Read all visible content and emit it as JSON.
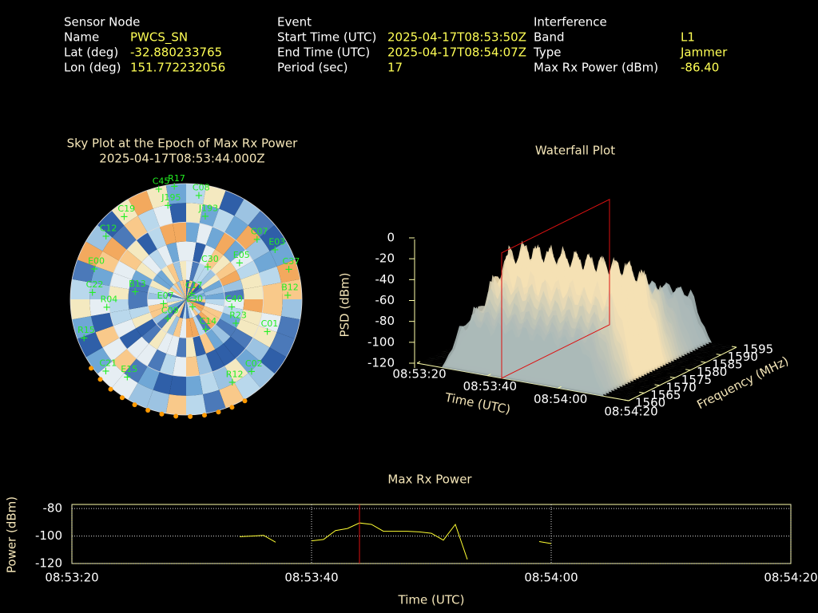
{
  "header": {
    "columns": [
      {
        "heading": "Sensor Node",
        "rows": [
          [
            "Name",
            "PWCS_SN"
          ],
          [
            "Lat (deg)",
            "-32.880233765"
          ],
          [
            "Lon (deg)",
            "151.772232056"
          ]
        ]
      },
      {
        "heading": "Event",
        "rows": [
          [
            "Start Time (UTC)",
            "2025-04-17T08:53:50Z"
          ],
          [
            "End Time (UTC)",
            "2025-04-17T08:54:07Z"
          ],
          [
            "Period (sec)",
            "17"
          ]
        ]
      },
      {
        "heading": "Interference",
        "rows": [
          [
            "Band",
            "L1"
          ],
          [
            "Type",
            "Jammer"
          ],
          [
            "Max Rx Power (dBm)",
            "-86.40"
          ]
        ]
      }
    ]
  },
  "chart_data": [
    {
      "type": "polar_scatter",
      "title": "Sky Plot at the Epoch of Max Rx Power",
      "subtitle": "2025-04-17T08:53:44.000Z",
      "color": "#22ee22",
      "names": [
        "C45",
        "R17",
        "C08",
        "J195",
        "J193",
        "C19",
        "C12",
        "C07",
        "E03",
        "C37",
        "E00",
        "C22",
        "B12",
        "R04",
        "B13",
        "E07",
        "C17",
        "E30",
        "C30",
        "E05",
        "C40",
        "R23",
        "C01",
        "C14",
        "R15",
        "C02",
        "R12",
        "C21",
        "E15",
        "C09"
      ],
      "az": [
        346,
        354,
        7,
        349,
        13,
        323,
        308,
        50,
        61,
        74,
        288,
        274,
        88,
        264,
        278,
        258,
        45,
        141,
        34,
        56,
        100,
        116,
        112,
        147,
        249,
        138,
        151,
        228,
        217,
        223
      ],
      "el": [
        2,
        2,
        9,
        16,
        24,
        10,
        11,
        18,
        11,
        7,
        15,
        17,
        11,
        28,
        50,
        72,
        84,
        82,
        60,
        40,
        54,
        47,
        22,
        62,
        5,
        14,
        16,
        6,
        14,
        69
      ]
    },
    {
      "type": "surface3d",
      "title": "Waterfall Plot",
      "xlabel": "Time (UTC)",
      "ylabel": "Frequency (MHz)",
      "zlabel": "PSD (dBm)",
      "xlim": [
        "08:53:20",
        "08:54:20"
      ],
      "xticks": [
        "08:53:20",
        "08:53:40",
        "08:54:00",
        "08:54:20"
      ],
      "ylim": [
        1560,
        1595
      ],
      "yticks": [
        1560,
        1565,
        1570,
        1575,
        1580,
        1585,
        1590,
        1595
      ],
      "zlim": [
        -120,
        0
      ],
      "zticks": [
        0,
        -20,
        -40,
        -60,
        -80,
        -100,
        -120
      ],
      "marker_x": "08:53:44",
      "marker_color": "#dd1111"
    },
    {
      "type": "line",
      "title": "Max Rx Power",
      "xlabel": "Time (UTC)",
      "ylabel": "Power (dBm)",
      "x": [
        "08:53:34",
        "08:53:35",
        "08:53:36",
        "08:53:37",
        null,
        "08:53:40",
        "08:53:41",
        "08:53:42",
        "08:53:43",
        "08:53:44",
        "08:53:45",
        "08:53:46",
        "08:53:47",
        "08:53:48",
        "08:53:49",
        "08:53:50",
        "08:53:51",
        "08:53:52",
        "08:53:53",
        null,
        "08:53:59",
        "08:54:00"
      ],
      "series": [
        {
          "color": "#ffff33",
          "values": [
            -100.5,
            -100,
            -99.5,
            -104.5,
            null,
            -103.5,
            -102.5,
            -96,
            -94.5,
            -90.5,
            -91.5,
            -96.5,
            -96.5,
            -96.5,
            -97,
            -98,
            -103,
            -91.5,
            -117,
            null,
            -104,
            -105.5
          ]
        }
      ],
      "xlim": [
        "08:53:20",
        "08:54:20"
      ],
      "xticks": [
        "08:53:20",
        "08:53:40",
        "08:54:00",
        "08:54:20"
      ],
      "ylim": [
        -120,
        -77
      ],
      "yticks": [
        -80,
        -100,
        -120
      ],
      "grid": true,
      "marker_x": "08:53:44",
      "marker_color": "#dd1111"
    }
  ]
}
